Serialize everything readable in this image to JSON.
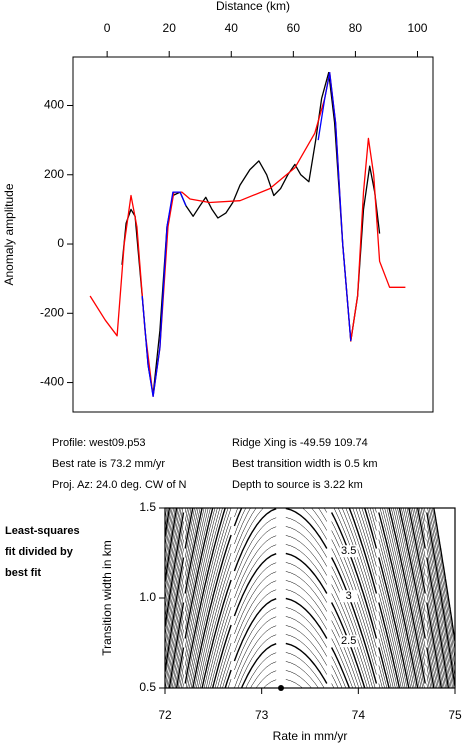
{
  "chart_data": [
    {
      "type": "line",
      "xlabel": "Distance (km)",
      "ylabel": "Anomaly amplitude",
      "xlim": [
        -11,
        105
      ],
      "xticks": [
        0,
        20,
        40,
        60,
        80,
        100
      ],
      "ylim": [
        -485,
        540
      ],
      "yticks": [
        -400,
        -200,
        0,
        200,
        400
      ],
      "series": [
        {
          "color": "#000000",
          "x": [
            4.8,
            6.1,
            7.7,
            9,
            11.3,
            13.2,
            14.8,
            17,
            19.3,
            21.2,
            23.5,
            25.4,
            27.7,
            29.9,
            31.8,
            33.8,
            35.7,
            38.3,
            40.5,
            42.8,
            46,
            48.9,
            51.4,
            53.7,
            55.9,
            58.2,
            60.5,
            62.4,
            65,
            67.2,
            69.1,
            71.4,
            73.3,
            75.9,
            78.5,
            80.7,
            82.6,
            84.6,
            86.2,
            87.8
          ],
          "values": [
            -60,
            60,
            100,
            80,
            -150,
            -350,
            -435,
            -250,
            50,
            140,
            150,
            110,
            80,
            110,
            135,
            100,
            75,
            90,
            120,
            170,
            215,
            240,
            200,
            140,
            160,
            200,
            230,
            200,
            180,
            300,
            420,
            495,
            350,
            0,
            -280,
            -150,
            100,
            225,
            150,
            30
          ]
        },
        {
          "color": "#ff0000",
          "x": [
            -5.5,
            -0.6,
            3.2,
            5.5,
            7.7,
            9.6,
            12.2,
            14.8,
            17,
            19.6,
            21.5,
            24.1,
            26.7,
            33,
            42.8,
            52.4,
            60.5,
            66.9,
            70.1,
            71.7,
            73.6,
            75.9,
            78.5,
            80.7,
            82.6,
            84.2,
            85.9,
            87.8,
            91,
            96.1
          ],
          "values": [
            -150,
            -220,
            -265,
            0,
            140,
            50,
            -250,
            -440,
            -300,
            50,
            150,
            150,
            130,
            120,
            125,
            160,
            220,
            320,
            420,
            495,
            350,
            0,
            -280,
            -150,
            150,
            305,
            200,
            -50,
            -125,
            -125
          ]
        },
        {
          "color": "#0000ff",
          "x": [
            11.3,
            13.2,
            14.8,
            17,
            19.3,
            21.2,
            23.5,
            25.4,
            26,
            68,
            70.1,
            71.7,
            73.6,
            75.9,
            78.5
          ],
          "values": [
            -150,
            -350,
            -440,
            -300,
            50,
            150,
            150,
            110,
            null,
            300,
            420,
            495,
            350,
            0,
            -280
          ]
        }
      ]
    },
    {
      "type": "contour",
      "xlabel": "Rate in mm/yr",
      "ylabel": "Transition width in km",
      "side_label": [
        "Least-squares",
        "fit divided by",
        "best fit"
      ],
      "xlim": [
        72,
        75
      ],
      "xticks": [
        72,
        73,
        74,
        75
      ],
      "ylim": [
        0.5,
        1.5
      ],
      "yticks": [
        {
          "value": 0.5,
          "label": "0.5"
        },
        {
          "value": 1,
          "label": "1.0"
        },
        {
          "value": 1.5,
          "label": "1.5"
        }
      ],
      "best_point": {
        "x": 73.2,
        "y": 0.5
      },
      "contour_labels": [
        3.5,
        3,
        2.5
      ],
      "contour_levels": [
        1.1,
        1.2,
        1.3,
        1.4,
        1.5,
        1.6,
        1.7,
        1.8,
        1.9,
        2,
        2.1,
        2.2,
        2.3,
        2.4,
        2.5,
        2.6,
        2.7,
        2.8,
        2.9,
        3,
        3.1,
        3.2,
        3.3,
        3.4,
        3.5,
        3.6,
        3.7,
        3.8,
        3.9,
        4,
        4.1,
        4.2,
        4.3,
        4.4,
        4.5,
        4.6,
        4.7,
        4.8,
        4.9,
        5,
        5.1,
        5.2,
        5.3,
        5.4,
        5.5,
        5.6,
        5.7,
        5.8,
        5.9,
        6,
        6.1,
        6.2,
        6.3,
        6.4,
        6.5,
        6.6,
        6.7,
        6.8,
        6.9,
        7,
        7.1,
        7.2,
        7.3,
        7.4,
        7.5,
        7.6,
        7.7,
        7.8,
        7.9,
        8
      ]
    }
  ],
  "info": {
    "left": [
      "Profile: west09.p53",
      "Best rate is 73.2 mm/yr",
      "Proj. Az: 24.0 deg. CW of N"
    ],
    "right": [
      "Ridge Xing is -49.59 109.74",
      "Best transition width is 0.5 km",
      "Depth to source is   3.22 km"
    ]
  }
}
